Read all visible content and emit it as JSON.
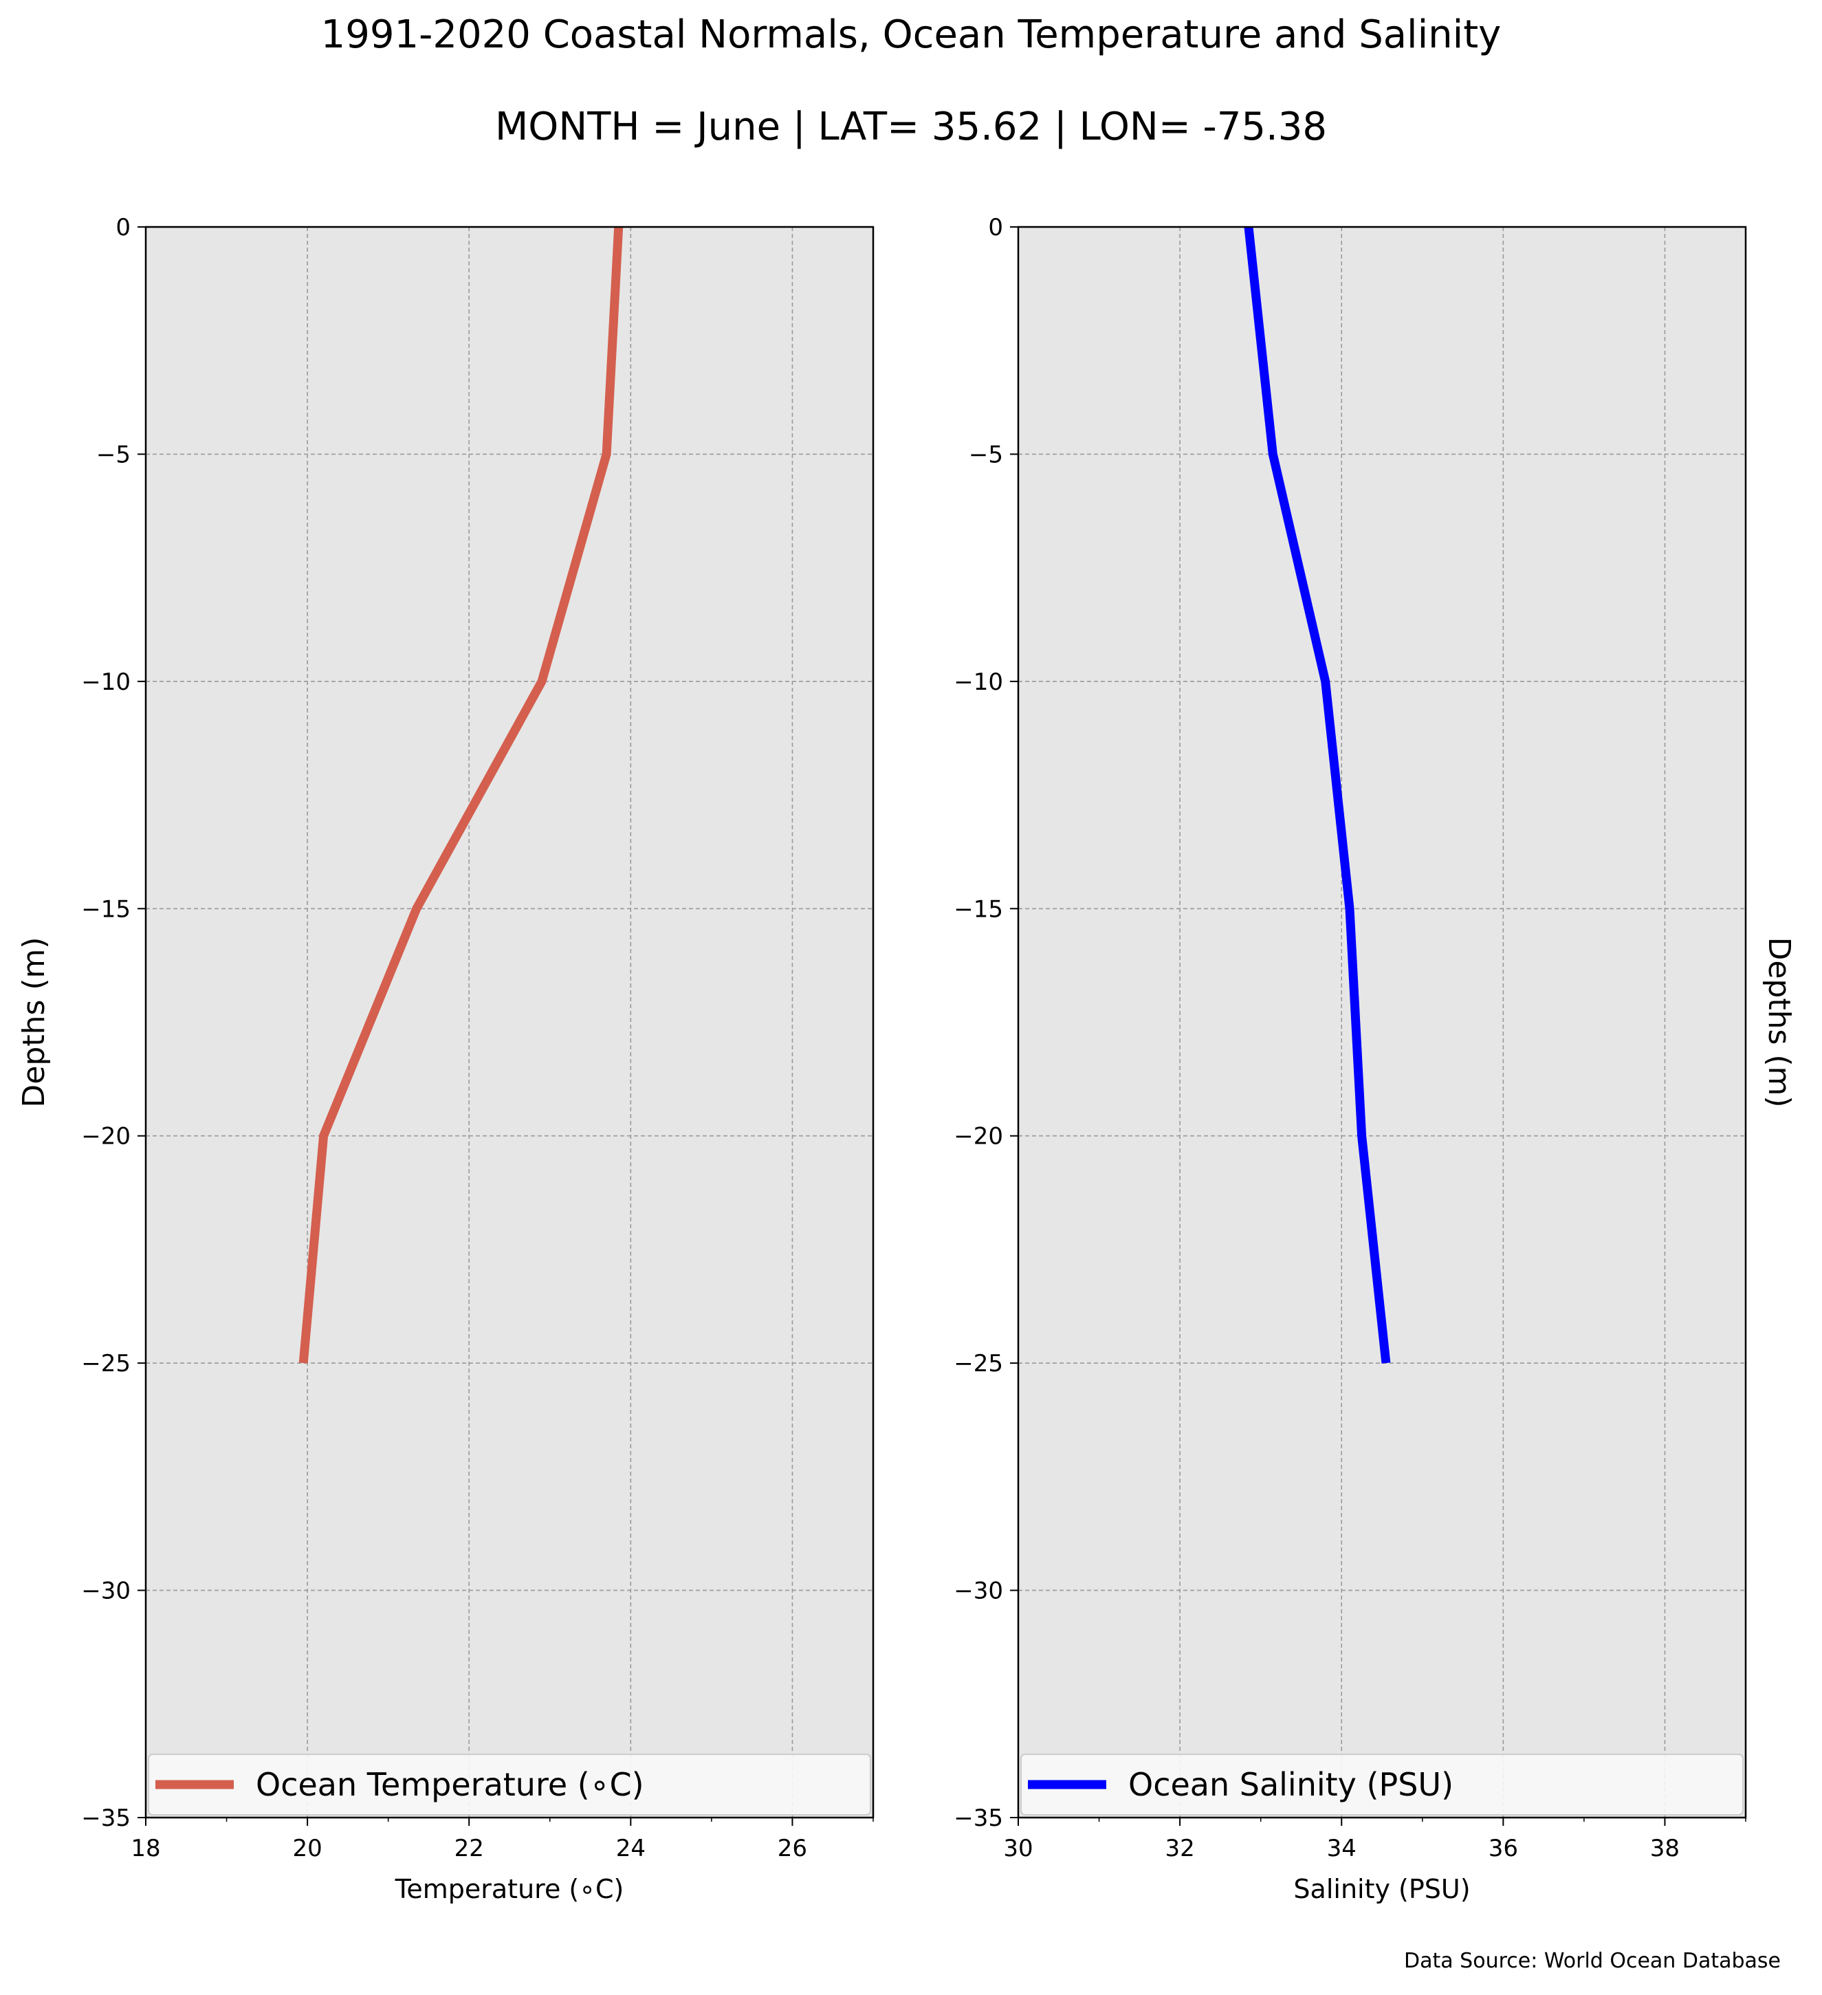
{
  "figure": {
    "title": "1991-2020 Coastal Normals, Ocean Temperature and Salinity",
    "subtitle": "MONTH = June | LAT= 35.62 | LON= -75.38",
    "source": "Data Source: World Ocean Database",
    "background": "#e6e6e6",
    "grid_color": "#9a9a9a"
  },
  "chart_data": [
    {
      "type": "line",
      "xlabel": "Temperature (∘C)",
      "ylabel": "Depths (m)",
      "ylabel_side": "left",
      "xlim": [
        18,
        27
      ],
      "ylim": [
        -35,
        0
      ],
      "xticks": [
        18,
        20,
        22,
        24,
        26
      ],
      "xtick_labels": [
        "18",
        "20",
        "22",
        "24",
        "26"
      ],
      "yticks": [
        0,
        -5,
        -10,
        -15,
        -20,
        -25,
        -30,
        -35
      ],
      "ytick_labels": [
        "0",
        "−5",
        "−10",
        "−15",
        "−20",
        "−25",
        "−30",
        "−35"
      ],
      "grid": true,
      "legend_position": "bottom",
      "series": [
        {
          "name": "Ocean Temperature (∘C)",
          "color": "#d45f4e",
          "x": [
            23.85,
            23.7,
            22.9,
            21.35,
            20.2,
            19.95
          ],
          "y": [
            0,
            -5,
            -10,
            -15,
            -20,
            -25
          ]
        }
      ]
    },
    {
      "type": "line",
      "xlabel": "Salinity (PSU)",
      "ylabel": "Depths (m)",
      "ylabel_side": "right",
      "xlim": [
        30,
        39
      ],
      "ylim": [
        -35,
        0
      ],
      "xticks": [
        30,
        32,
        34,
        36,
        38
      ],
      "xtick_labels": [
        "30",
        "32",
        "34",
        "36",
        "38"
      ],
      "yticks": [
        0,
        -5,
        -10,
        -15,
        -20,
        -25,
        -30,
        -35
      ],
      "ytick_labels": [
        "0",
        "−5",
        "−10",
        "−15",
        "−20",
        "−25",
        "−30",
        "−35"
      ],
      "grid": true,
      "legend_position": "bottom",
      "series": [
        {
          "name": "Ocean Salinity (PSU)",
          "color": "#0000ff",
          "x": [
            32.85,
            33.15,
            33.8,
            34.1,
            34.25,
            34.55
          ],
          "y": [
            0,
            -5,
            -10,
            -15,
            -20,
            -25
          ]
        }
      ]
    }
  ]
}
